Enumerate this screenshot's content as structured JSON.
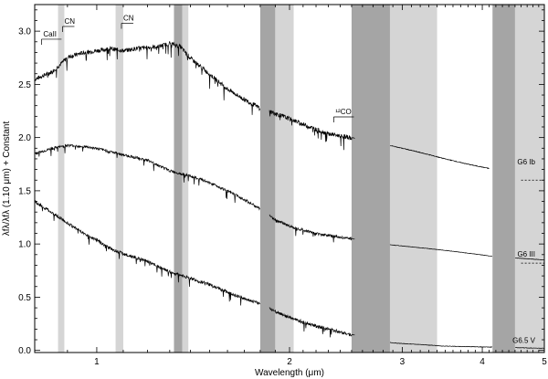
{
  "chart_data": {
    "type": "line",
    "xlabel": "Wavelength (μm)",
    "ylabel": "λfλ/λfλ (1.10 μm) + Constant",
    "xlim": [
      0.8,
      5.0
    ],
    "ylim": [
      -0.02,
      3.25
    ],
    "xscale": "log",
    "x_ticks": [
      1,
      2,
      3,
      4,
      5
    ],
    "y_ticks": [
      0.0,
      0.5,
      1.0,
      1.5,
      2.0,
      2.5,
      3.0
    ],
    "y_tick_labels": [
      "0.0",
      "0.5",
      "1.0",
      "1.5",
      "2.0",
      "2.5",
      "3.0"
    ],
    "bands": [
      {
        "x0": 0.87,
        "x1": 0.89,
        "shade": "light"
      },
      {
        "x0": 1.07,
        "x1": 1.1,
        "shade": "light"
      },
      {
        "x0": 1.32,
        "x1": 1.36,
        "shade": "dark"
      },
      {
        "x0": 1.36,
        "x1": 1.39,
        "shade": "light"
      },
      {
        "x0": 1.8,
        "x1": 1.9,
        "shade": "dark"
      },
      {
        "x0": 1.9,
        "x1": 2.03,
        "shade": "light"
      },
      {
        "x0": 2.5,
        "x1": 2.87,
        "shade": "dark"
      },
      {
        "x0": 2.87,
        "x1": 3.4,
        "shade": "light"
      },
      {
        "x0": 4.15,
        "x1": 4.5,
        "shade": "dark"
      },
      {
        "x0": 4.5,
        "x1": 5.0,
        "shade": "light"
      }
    ],
    "series": [
      {
        "name": "G6 Ib",
        "label_y": 1.75,
        "ref_line": 1.6,
        "x": [
          0.8,
          0.82,
          0.85,
          0.88,
          0.9,
          0.95,
          1.0,
          1.05,
          1.1,
          1.15,
          1.2,
          1.25,
          1.3,
          1.35,
          1.4,
          1.5,
          1.6,
          1.7,
          1.8,
          2.0,
          2.1,
          2.2,
          2.3,
          2.5,
          2.9,
          3.2,
          3.5,
          3.8,
          4.1
        ],
        "y": [
          2.55,
          2.58,
          2.62,
          2.7,
          2.76,
          2.8,
          2.82,
          2.84,
          2.82,
          2.84,
          2.85,
          2.86,
          2.89,
          2.86,
          2.75,
          2.6,
          2.46,
          2.36,
          2.28,
          2.18,
          2.13,
          2.08,
          2.04,
          2.0,
          1.92,
          1.86,
          1.8,
          1.75,
          1.71
        ],
        "noise": 0.04
      },
      {
        "name": "G6 III",
        "label_y": 0.88,
        "ref_line": 0.82,
        "x": [
          0.8,
          0.85,
          0.9,
          0.95,
          1.0,
          1.05,
          1.1,
          1.2,
          1.3,
          1.4,
          1.5,
          1.6,
          1.7,
          1.8,
          1.9,
          2.0,
          2.2,
          2.5,
          2.9,
          3.5,
          4.2,
          5.0
        ],
        "y": [
          1.85,
          1.9,
          1.93,
          1.92,
          1.9,
          1.87,
          1.84,
          1.79,
          1.69,
          1.64,
          1.58,
          1.5,
          1.42,
          1.33,
          1.23,
          1.17,
          1.1,
          1.05,
          0.99,
          0.94,
          0.88,
          0.85
        ],
        "noise": 0.025
      },
      {
        "name": "G6.5 V",
        "label_y": 0.07,
        "ref_line": null,
        "x": [
          0.8,
          0.85,
          0.9,
          0.95,
          1.0,
          1.05,
          1.1,
          1.2,
          1.3,
          1.4,
          1.5,
          1.6,
          1.7,
          1.8,
          1.9,
          2.0,
          2.2,
          2.5,
          2.9,
          3.5,
          4.2,
          5.0
        ],
        "y": [
          1.4,
          1.3,
          1.2,
          1.11,
          1.04,
          0.96,
          0.91,
          0.84,
          0.74,
          0.68,
          0.62,
          0.55,
          0.49,
          0.44,
          0.37,
          0.31,
          0.23,
          0.15,
          0.07,
          0.04,
          0.03,
          0.02
        ],
        "noise": 0.03
      }
    ],
    "annotations": [
      {
        "text": "CaII",
        "x": 0.825,
        "y": 2.95
      },
      {
        "text": "CN",
        "x": 0.89,
        "y": 3.07
      },
      {
        "text": "CN",
        "x": 1.1,
        "y": 3.1
      },
      {
        "text": "¹²CO",
        "x": 2.36,
        "y": 2.22
      }
    ]
  }
}
